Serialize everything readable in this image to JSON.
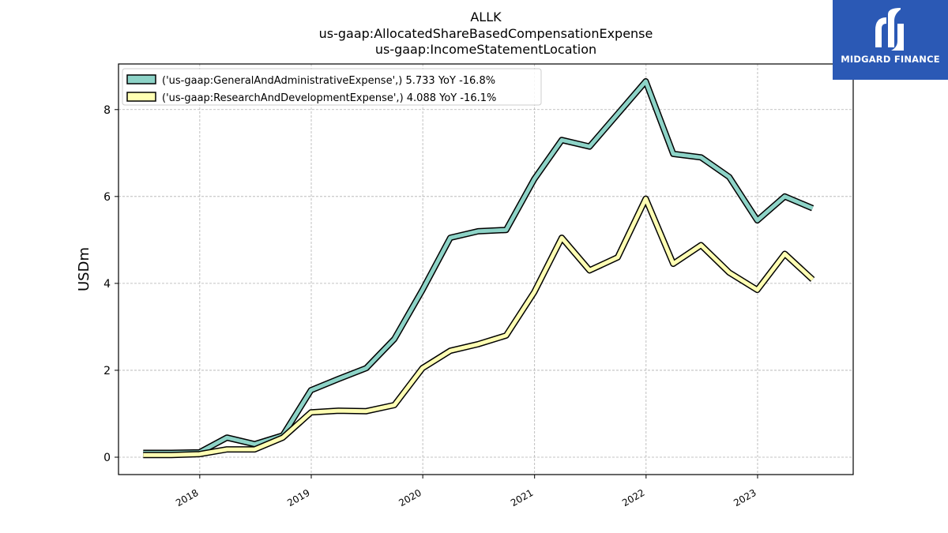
{
  "chart_data": {
    "type": "line",
    "title": [
      "ALLK",
      "us-gaap:AllocatedShareBasedCompensationExpense",
      "us-gaap:IncomeStatementLocation"
    ],
    "ylabel": "USDm",
    "xlabel": "",
    "ylim": [
      -0.4,
      9.05
    ],
    "yticks": [
      0,
      2,
      4,
      6,
      8
    ],
    "xlim": [
      "2017-04-10",
      "2023-11-10"
    ],
    "xticks": [
      "2018",
      "2019",
      "2020",
      "2021",
      "2022",
      "2023"
    ],
    "grid": true,
    "legend_position": "top-left",
    "series": [
      {
        "name": "('us-gaap:GeneralAndAdministrativeExpense',) 5.733 YoY -16.8%",
        "color": "#8dd3c7",
        "x": [
          "2017-06-30",
          "2017-09-30",
          "2017-12-31",
          "2018-03-31",
          "2018-06-30",
          "2018-09-30",
          "2018-12-31",
          "2019-03-31",
          "2019-06-30",
          "2019-09-30",
          "2019-12-31",
          "2020-03-31",
          "2020-06-30",
          "2020-09-30",
          "2020-12-31",
          "2021-03-31",
          "2021-06-30",
          "2021-09-30",
          "2021-12-31",
          "2022-03-31",
          "2022-06-30",
          "2022-09-30",
          "2022-12-31",
          "2023-03-31",
          "2023-06-30"
        ],
        "values": [
          0.1,
          0.1,
          0.11,
          0.45,
          0.3,
          0.5,
          1.54,
          1.8,
          2.05,
          2.72,
          3.85,
          5.05,
          5.2,
          5.23,
          6.4,
          7.3,
          7.15,
          7.9,
          8.65,
          6.98,
          6.9,
          6.45,
          5.45,
          6.0,
          5.73
        ]
      },
      {
        "name": "('us-gaap:ResearchAndDevelopmentExpense',) 4.088 YoY -16.1%",
        "color": "#ffffb3",
        "x": [
          "2017-06-30",
          "2017-09-30",
          "2017-12-31",
          "2018-03-31",
          "2018-06-30",
          "2018-09-30",
          "2018-12-31",
          "2019-03-31",
          "2019-06-30",
          "2019-09-30",
          "2019-12-31",
          "2020-03-31",
          "2020-06-30",
          "2020-09-30",
          "2020-12-31",
          "2021-03-31",
          "2021-06-30",
          "2021-09-30",
          "2021-12-31",
          "2022-03-31",
          "2022-06-30",
          "2022-09-30",
          "2022-12-31",
          "2023-03-31",
          "2023-06-30"
        ],
        "values": [
          0.05,
          0.05,
          0.07,
          0.18,
          0.18,
          0.45,
          1.03,
          1.07,
          1.06,
          1.2,
          2.05,
          2.45,
          2.6,
          2.8,
          3.8,
          5.05,
          4.3,
          4.6,
          5.95,
          4.45,
          4.88,
          4.25,
          3.85,
          4.68,
          4.09
        ]
      }
    ]
  },
  "brand": {
    "name": "MIDGARD FINANCE",
    "color": "#2b59b5"
  }
}
